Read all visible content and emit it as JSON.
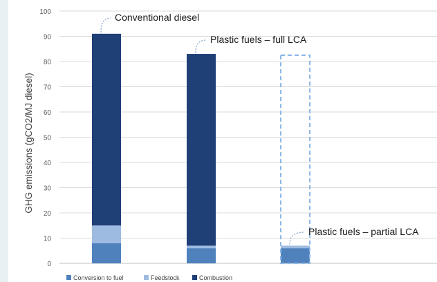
{
  "chart_data": {
    "type": "bar",
    "stacked": true,
    "categories": [
      "",
      "",
      ""
    ],
    "ylabel": "GHG emissions (gCO2/MJ diesel)",
    "xlabel": "",
    "ylim": [
      0,
      100
    ],
    "yticks": [
      0,
      10,
      20,
      30,
      40,
      50,
      60,
      70,
      80,
      90,
      100
    ],
    "grid": true,
    "legend_position": "bottom-left",
    "series": [
      {
        "name": "Conversion to fuel",
        "color": "#4f81bd",
        "values": [
          8,
          6,
          6
        ]
      },
      {
        "name": "Feedstock",
        "color": "#9dbbe0",
        "values": [
          7,
          1,
          1
        ]
      },
      {
        "name": "Combustion",
        "color": "#1f3f77",
        "values": [
          76,
          76,
          0
        ]
      }
    ],
    "outline_bar": {
      "category_index": 2,
      "top": 82.5,
      "style": "dashed",
      "color": "#8db8e6"
    },
    "annotations": [
      {
        "text": "Conventional diesel",
        "bar_index": 0,
        "value": 91
      },
      {
        "text": "Plastic fuels – full LCA",
        "bar_index": 1,
        "value": 83
      },
      {
        "text": "Plastic fuels – partial LCA",
        "bar_index": 2,
        "value": 7
      }
    ]
  }
}
